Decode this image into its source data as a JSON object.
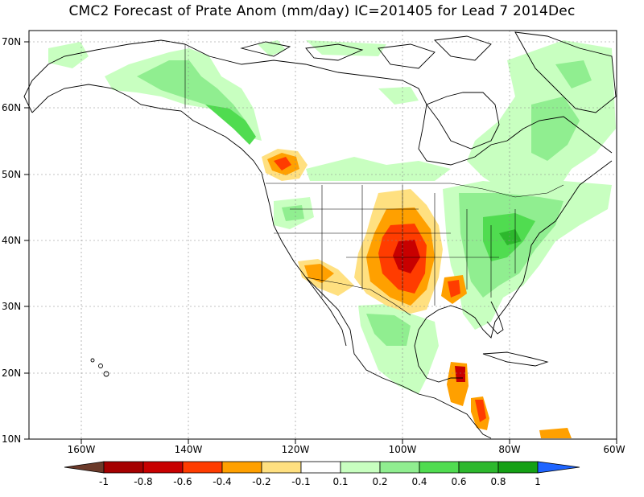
{
  "title": "CMC2 Forecast of Prate Anom (mm/day) IC=201405 for Lead 7 2014Dec",
  "lat_labels": [
    "70N",
    "60N",
    "50N",
    "40N",
    "30N",
    "20N",
    "10N"
  ],
  "lon_labels": [
    "160W",
    "140W",
    "120W",
    "100W",
    "80W",
    "60W"
  ],
  "colorbar": {
    "labels": [
      "-1",
      "-0.8",
      "-0.6",
      "-0.4",
      "-0.2",
      "-0.1",
      "0.1",
      "0.2",
      "0.4",
      "0.6",
      "0.8",
      "1"
    ],
    "colors": [
      "#6b3a2a",
      "#a50000",
      "#c80000",
      "#ff3c00",
      "#ffa000",
      "#ffe080",
      "#ffffff",
      "#c8ffc0",
      "#90ee90",
      "#50dc50",
      "#2db82d",
      "#14a014",
      "#1e64ff"
    ]
  },
  "colors": {
    "green_light": "#c8ffc0",
    "green_mid": "#90ee90",
    "green_strong": "#50dc50",
    "yellow": "#ffe080",
    "orange": "#ffa000",
    "red": "#ff3c00",
    "dark_red": "#c80000"
  }
}
